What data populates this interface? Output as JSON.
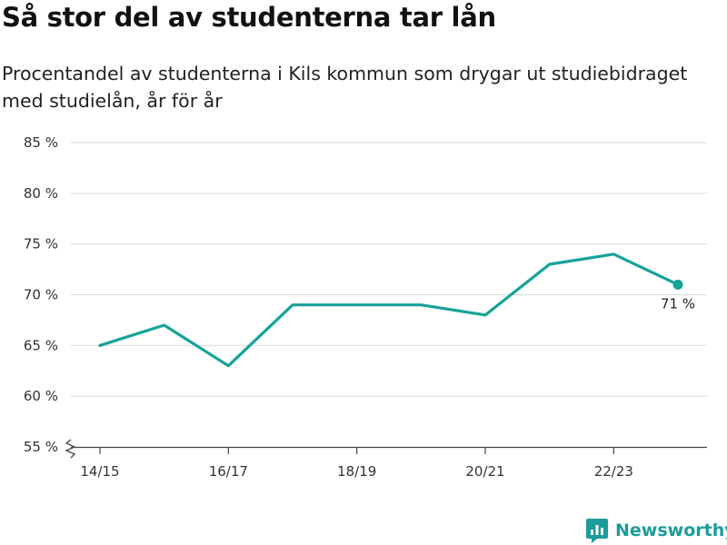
{
  "colors": {
    "line": "#16a399",
    "grid": "#dddddd",
    "axis": "#444444",
    "brand": "#1a9c9a"
  },
  "header": {
    "title": "Så stor del av studenterna tar lån",
    "subtitle": "Procentandel av studenterna i Kils kommun som drygar ut studiebidraget med studielån, år för år"
  },
  "brand": {
    "name": "Newsworthy",
    "icon": "newsworthy-logo-icon"
  },
  "chart_data": {
    "type": "line",
    "title": "Så stor del av studenterna tar lån",
    "subtitle": "Procentandel av studenterna i Kils kommun som drygar ut studiebidraget med studielån, år för år",
    "xlabel": "",
    "ylabel": "",
    "x": [
      "14/15",
      "15/16",
      "16/17",
      "17/18",
      "18/19",
      "19/20",
      "20/21",
      "21/22",
      "22/23",
      "23/24"
    ],
    "x_tick_labels": [
      "14/15",
      "16/17",
      "18/19",
      "20/21",
      "22/23"
    ],
    "series": [
      {
        "values": [
          65,
          67,
          63,
          69,
          69,
          69,
          68,
          73,
          74,
          71
        ]
      }
    ],
    "ylim": [
      55,
      85
    ],
    "y_ticks": [
      55,
      60,
      65,
      70,
      75,
      80,
      85
    ],
    "y_tick_labels": [
      "55 %",
      "60 %",
      "65 %",
      "70 %",
      "75 %",
      "80 %",
      "85 %"
    ],
    "axis_break": true,
    "grid": "horizontal",
    "end_label": "71 %"
  }
}
